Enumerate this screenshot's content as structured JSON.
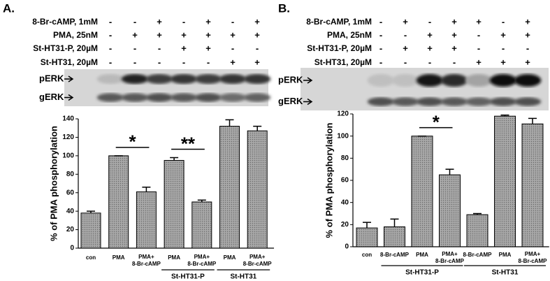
{
  "panels": [
    {
      "label": "A.",
      "treatments": [
        {
          "name": "8-Br-cAMP, 1mM",
          "signs": [
            "-",
            "-",
            "+",
            "-",
            "+",
            "-",
            "+"
          ]
        },
        {
          "name": "PMA, 25nM",
          "signs": [
            "-",
            "+",
            "+",
            "+",
            "+",
            "+",
            "+"
          ]
        },
        {
          "name": "St-HT31-P, 20µM",
          "signs": [
            "-",
            "-",
            "-",
            "+",
            "+",
            "-",
            "-"
          ]
        },
        {
          "name": "St-HT31, 20µM",
          "signs": [
            "-",
            "-",
            "-",
            "-",
            "-",
            "+",
            "+"
          ]
        }
      ],
      "blots": [
        "pERK",
        "gERK"
      ]
    },
    {
      "label": "B.",
      "treatments": [
        {
          "name": "8-Br-cAMP, 1mM",
          "signs": [
            "-",
            "+",
            "-",
            "+",
            "+",
            "-",
            "+"
          ]
        },
        {
          "name": "PMA, 25nM",
          "signs": [
            "-",
            "-",
            "+",
            "+",
            "-",
            "+",
            "+"
          ]
        },
        {
          "name": "St-HT31-P, 20µM",
          "signs": [
            "-",
            "+",
            "+",
            "+",
            "-",
            "-",
            "-"
          ]
        },
        {
          "name": "St-HT31, 20µM",
          "signs": [
            "-",
            "-",
            "-",
            "-",
            "+",
            "+",
            "+"
          ]
        }
      ],
      "blots": [
        "pERK",
        "gERK"
      ]
    }
  ],
  "chart_data": [
    {
      "type": "bar",
      "y_label": "% of PMA phosphorylation",
      "categories": [
        [
          "con"
        ],
        [
          "PMA"
        ],
        [
          "PMA+",
          "8-Br-cAMP"
        ],
        [
          "PMA"
        ],
        [
          "PMA+",
          "8-Br-cAMP"
        ],
        [
          "PMA"
        ],
        [
          "PMA+",
          "8-Br-cAMP"
        ]
      ],
      "values": [
        38,
        100,
        61,
        95,
        50,
        132,
        127
      ],
      "errors": [
        2,
        0,
        5,
        3,
        2,
        7,
        5
      ],
      "color": "#9a9a9a",
      "ylim": [
        0,
        140
      ],
      "yticks": [
        0,
        20,
        40,
        60,
        80,
        100,
        120,
        140
      ],
      "groups": [
        {
          "name": "St-HT31-P",
          "span": [
            3,
            4
          ]
        },
        {
          "name": "St-HT31",
          "span": [
            5,
            6
          ]
        }
      ],
      "annotations": [
        {
          "text": "*",
          "between": [
            1,
            2
          ]
        },
        {
          "text": "**",
          "between": [
            3,
            4
          ]
        }
      ]
    },
    {
      "type": "bar",
      "y_label": "% of PMA phosphorylation",
      "categories": [
        [
          "con"
        ],
        [
          "8-Br-cAMP"
        ],
        [
          "PMA"
        ],
        [
          "PMA+",
          "8-Br-cAMP"
        ],
        [
          "8-Br-cAMP"
        ],
        [
          "PMA"
        ],
        [
          "PMA+",
          "8-Br-cAMP"
        ]
      ],
      "values": [
        17,
        18,
        100,
        65,
        29,
        118,
        111
      ],
      "errors": [
        5,
        7,
        0,
        5,
        1,
        1,
        5
      ],
      "color": "#9a9a9a",
      "ylim": [
        0,
        120
      ],
      "yticks": [
        0,
        20,
        40,
        60,
        80,
        100,
        120
      ],
      "groups": [
        {
          "name": "St-HT31-P",
          "span": [
            1,
            3
          ]
        },
        {
          "name": "St-HT31",
          "span": [
            4,
            6
          ]
        }
      ],
      "annotations": [
        {
          "text": "*",
          "between": [
            2,
            3
          ]
        }
      ]
    }
  ]
}
